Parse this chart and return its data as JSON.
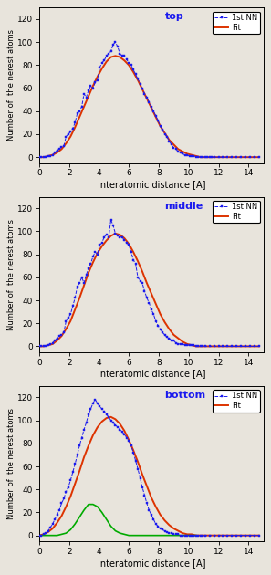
{
  "background_color": "#e8e4dc",
  "panel_bg": "#e8e4dc",
  "xlim": [
    0,
    15
  ],
  "ylim": [
    -5,
    130
  ],
  "xticks": [
    0,
    2,
    4,
    6,
    8,
    10,
    12,
    14
  ],
  "yticks": [
    0,
    20,
    40,
    60,
    80,
    100,
    120
  ],
  "xlabel": "Interatomic distance [A]",
  "ylabel": "Number of  the nerest atoms",
  "nn_color": "#1a1aee",
  "fit_color": "#dd3300",
  "green_color": "#00aa00",
  "panel_labels": [
    "top",
    "middle",
    "bottom"
  ],
  "legend_label_nn": "1st NN",
  "legend_label_fit": "Fit",
  "top_nn_x": [
    0.0,
    0.15,
    0.3,
    0.45,
    0.6,
    0.75,
    0.9,
    1.05,
    1.2,
    1.35,
    1.5,
    1.65,
    1.8,
    1.95,
    2.1,
    2.25,
    2.4,
    2.55,
    2.7,
    2.85,
    3.0,
    3.15,
    3.3,
    3.45,
    3.6,
    3.75,
    3.9,
    4.05,
    4.2,
    4.35,
    4.5,
    4.65,
    4.8,
    4.95,
    5.1,
    5.25,
    5.4,
    5.55,
    5.7,
    5.85,
    6.0,
    6.15,
    6.3,
    6.45,
    6.6,
    6.75,
    6.9,
    7.05,
    7.2,
    7.35,
    7.5,
    7.65,
    7.8,
    7.95,
    8.1,
    8.25,
    8.4,
    8.55,
    8.7,
    8.85,
    9.0,
    9.15,
    9.3,
    9.45,
    9.6,
    9.75,
    9.9,
    10.05,
    10.2,
    10.35,
    10.5,
    10.65,
    10.8,
    10.95,
    11.1,
    11.25,
    11.4,
    11.55,
    11.7,
    12.0,
    12.3,
    12.6,
    12.9,
    13.2,
    13.5,
    13.8,
    14.1,
    14.4,
    14.7
  ],
  "top_nn_y": [
    0,
    0,
    0,
    0,
    1,
    1,
    2,
    4,
    6,
    7,
    9,
    10,
    18,
    20,
    22,
    25,
    30,
    38,
    40,
    44,
    55,
    52,
    58,
    62,
    60,
    65,
    67,
    78,
    82,
    84,
    88,
    90,
    92,
    98,
    100,
    96,
    90,
    88,
    88,
    85,
    82,
    80,
    76,
    72,
    68,
    64,
    60,
    55,
    52,
    48,
    44,
    40,
    36,
    32,
    27,
    24,
    20,
    18,
    14,
    11,
    8,
    7,
    5,
    4,
    3,
    2,
    2,
    1,
    1,
    1,
    0,
    0,
    0,
    0,
    0,
    0,
    0,
    0,
    0,
    0,
    0,
    0,
    0,
    0,
    0,
    0,
    0,
    0,
    0
  ],
  "top_fit_x": [
    0.0,
    0.3,
    0.6,
    0.9,
    1.2,
    1.5,
    1.8,
    2.1,
    2.4,
    2.7,
    3.0,
    3.3,
    3.6,
    3.9,
    4.2,
    4.5,
    4.8,
    5.1,
    5.4,
    5.7,
    6.0,
    6.3,
    6.6,
    6.9,
    7.2,
    7.5,
    7.8,
    8.1,
    8.4,
    8.7,
    9.0,
    9.3,
    9.6,
    9.9,
    10.2,
    10.5,
    10.8,
    11.1,
    11.4,
    11.7,
    12.0,
    12.3,
    12.6,
    12.9,
    13.2,
    13.5,
    13.8,
    14.1,
    14.4,
    14.7
  ],
  "top_fit_y": [
    0,
    0,
    1,
    2,
    4,
    7,
    12,
    18,
    26,
    35,
    44,
    53,
    62,
    70,
    77,
    83,
    87,
    88,
    87,
    84,
    80,
    74,
    67,
    59,
    51,
    43,
    35,
    27,
    21,
    15,
    11,
    7,
    5,
    3,
    2,
    1,
    0,
    0,
    0,
    0,
    0,
    0,
    0,
    0,
    0,
    0,
    0,
    0,
    0,
    0
  ],
  "middle_nn_x": [
    0.0,
    0.15,
    0.3,
    0.45,
    0.6,
    0.75,
    0.9,
    1.05,
    1.2,
    1.35,
    1.5,
    1.65,
    1.8,
    1.95,
    2.1,
    2.25,
    2.4,
    2.55,
    2.7,
    2.85,
    3.0,
    3.15,
    3.3,
    3.45,
    3.6,
    3.75,
    3.9,
    4.05,
    4.2,
    4.35,
    4.5,
    4.65,
    4.8,
    4.95,
    5.1,
    5.25,
    5.4,
    5.55,
    5.7,
    5.85,
    6.0,
    6.15,
    6.3,
    6.45,
    6.6,
    6.75,
    6.9,
    7.05,
    7.2,
    7.35,
    7.5,
    7.65,
    7.8,
    7.95,
    8.1,
    8.25,
    8.4,
    8.55,
    8.7,
    8.85,
    9.0,
    9.15,
    9.3,
    9.45,
    9.6,
    9.75,
    9.9,
    10.05,
    10.2,
    10.35,
    10.5,
    10.65,
    10.8,
    10.95,
    11.1,
    11.4,
    11.7,
    12.0,
    12.3,
    12.6,
    12.9,
    13.2,
    13.5,
    13.8,
    14.1,
    14.4,
    14.7
  ],
  "middle_nn_y": [
    0,
    0,
    0,
    0,
    1,
    2,
    3,
    5,
    7,
    9,
    10,
    12,
    22,
    25,
    28,
    35,
    42,
    52,
    55,
    60,
    55,
    62,
    68,
    72,
    78,
    82,
    80,
    88,
    90,
    95,
    97,
    95,
    110,
    105,
    98,
    96,
    95,
    95,
    92,
    90,
    88,
    82,
    75,
    72,
    60,
    57,
    55,
    48,
    42,
    38,
    32,
    28,
    22,
    18,
    15,
    12,
    10,
    8,
    7,
    5,
    5,
    3,
    2,
    2,
    2,
    1,
    1,
    1,
    1,
    1,
    0,
    0,
    0,
    0,
    0,
    0,
    0,
    0,
    0,
    0,
    0,
    0,
    0,
    0,
    0,
    0,
    0
  ],
  "middle_fit_x": [
    0.0,
    0.3,
    0.6,
    0.9,
    1.2,
    1.5,
    1.8,
    2.1,
    2.4,
    2.7,
    3.0,
    3.3,
    3.6,
    3.9,
    4.2,
    4.5,
    4.8,
    5.1,
    5.4,
    5.7,
    6.0,
    6.3,
    6.6,
    6.9,
    7.2,
    7.5,
    7.8,
    8.1,
    8.4,
    8.7,
    9.0,
    9.3,
    9.6,
    9.9,
    10.2,
    10.5,
    10.8,
    11.1,
    11.4,
    11.7,
    12.0,
    12.3,
    12.6,
    12.9,
    13.2,
    13.5,
    13.8,
    14.1,
    14.4,
    14.7
  ],
  "middle_fit_y": [
    0,
    0,
    1,
    2,
    5,
    9,
    15,
    22,
    32,
    42,
    53,
    64,
    73,
    81,
    87,
    92,
    96,
    98,
    97,
    94,
    89,
    82,
    74,
    65,
    55,
    46,
    37,
    28,
    21,
    15,
    10,
    7,
    4,
    2,
    1,
    0,
    0,
    0,
    0,
    0,
    0,
    0,
    0,
    0,
    0,
    0,
    0,
    0,
    0,
    0
  ],
  "bottom_nn_x": [
    0.0,
    0.15,
    0.3,
    0.45,
    0.6,
    0.75,
    0.9,
    1.05,
    1.2,
    1.35,
    1.5,
    1.65,
    1.8,
    1.95,
    2.1,
    2.25,
    2.4,
    2.55,
    2.7,
    2.85,
    3.0,
    3.15,
    3.3,
    3.45,
    3.6,
    3.75,
    3.9,
    4.05,
    4.2,
    4.35,
    4.5,
    4.65,
    4.8,
    4.95,
    5.1,
    5.25,
    5.4,
    5.55,
    5.7,
    5.85,
    6.0,
    6.15,
    6.3,
    6.45,
    6.6,
    6.75,
    6.9,
    7.05,
    7.2,
    7.35,
    7.5,
    7.65,
    7.8,
    7.95,
    8.1,
    8.25,
    8.4,
    8.55,
    8.7,
    8.85,
    9.0,
    9.15,
    9.3,
    9.45,
    9.6,
    9.75,
    9.9,
    10.05,
    10.2,
    10.35,
    10.5,
    10.65,
    10.8,
    10.95,
    11.1,
    11.4,
    11.7,
    12.0,
    12.3,
    12.6,
    12.9,
    13.2,
    13.5,
    13.8,
    14.1,
    14.4,
    14.7
  ],
  "bottom_nn_y": [
    0,
    0,
    1,
    2,
    4,
    7,
    10,
    14,
    18,
    22,
    28,
    32,
    38,
    42,
    48,
    55,
    62,
    70,
    78,
    85,
    92,
    98,
    105,
    110,
    115,
    118,
    115,
    112,
    110,
    108,
    105,
    103,
    100,
    98,
    96,
    94,
    92,
    90,
    88,
    85,
    82,
    78,
    72,
    65,
    58,
    50,
    42,
    35,
    28,
    22,
    18,
    14,
    10,
    8,
    6,
    5,
    4,
    3,
    2,
    2,
    1,
    1,
    1,
    0,
    0,
    0,
    0,
    0,
    0,
    0,
    0,
    0,
    0,
    0,
    0,
    0,
    0,
    0,
    0,
    0,
    0,
    0,
    0,
    0,
    0,
    0,
    0
  ],
  "bottom_fit_x": [
    0.0,
    0.3,
    0.6,
    0.9,
    1.2,
    1.5,
    1.8,
    2.1,
    2.4,
    2.7,
    3.0,
    3.3,
    3.6,
    3.9,
    4.2,
    4.5,
    4.8,
    5.1,
    5.4,
    5.7,
    6.0,
    6.3,
    6.6,
    6.9,
    7.2,
    7.5,
    7.8,
    8.1,
    8.4,
    8.7,
    9.0,
    9.3,
    9.6,
    9.9,
    10.2,
    10.5,
    10.8,
    11.1,
    11.4,
    11.7,
    12.0,
    12.3,
    12.6,
    12.9,
    13.2,
    13.5,
    13.8,
    14.1,
    14.4,
    14.7
  ],
  "bottom_fit_y": [
    0,
    1,
    3,
    6,
    11,
    17,
    25,
    34,
    45,
    56,
    68,
    78,
    87,
    94,
    99,
    102,
    103,
    101,
    97,
    91,
    83,
    74,
    64,
    53,
    43,
    33,
    25,
    18,
    13,
    9,
    6,
    4,
    2,
    1,
    1,
    0,
    0,
    0,
    0,
    0,
    0,
    0,
    0,
    0,
    0,
    0,
    0,
    0,
    0,
    0
  ],
  "bottom_green_x": [
    0.0,
    0.3,
    0.6,
    0.9,
    1.2,
    1.5,
    1.8,
    2.1,
    2.4,
    2.7,
    3.0,
    3.3,
    3.6,
    3.9,
    4.2,
    4.5,
    4.8,
    5.1,
    5.4,
    5.7,
    6.0,
    6.3,
    6.6,
    6.9,
    7.2,
    7.5,
    7.8,
    8.1,
    8.4,
    8.7,
    9.0,
    9.3,
    9.6,
    9.9,
    10.2,
    10.5
  ],
  "bottom_green_y": [
    0,
    0,
    0,
    0,
    0,
    1,
    2,
    5,
    10,
    16,
    22,
    27,
    27,
    25,
    20,
    14,
    8,
    4,
    2,
    1,
    0,
    0,
    0,
    0,
    0,
    0,
    0,
    0,
    0,
    0,
    0,
    0,
    0,
    0,
    0,
    0
  ]
}
